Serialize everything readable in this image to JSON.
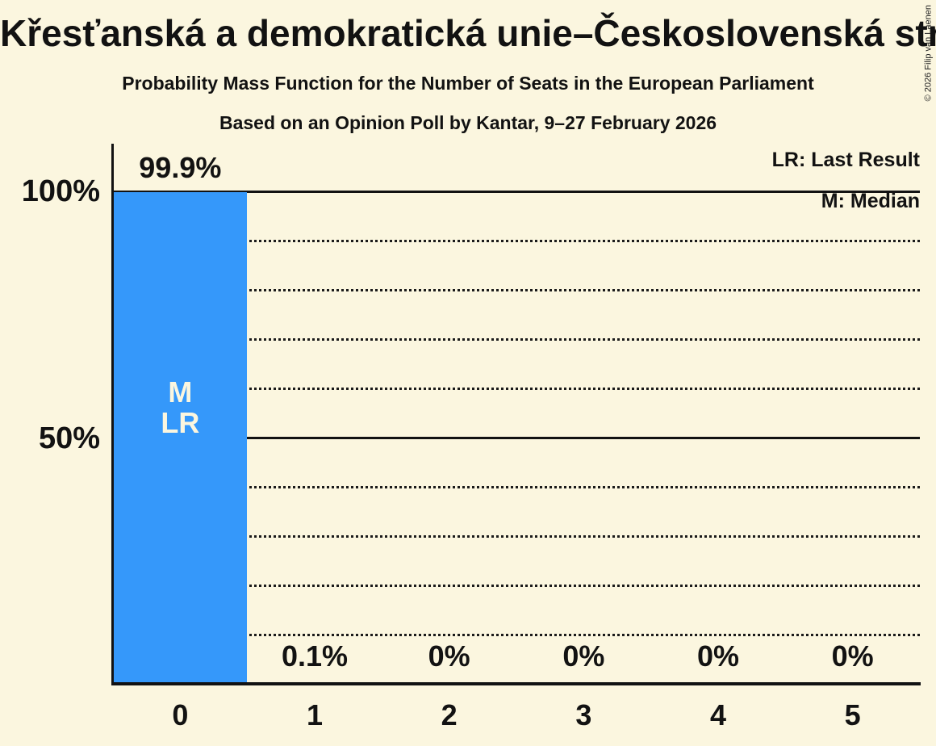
{
  "title": "Křesťanská a demokratická unie–Československá strana lidová",
  "subtitle": "Probability Mass Function for the Number of Seats in the European Parliament",
  "poll_source": "Based on an Opinion Poll by Kantar, 9–27 February 2026",
  "copyright": "© 2026 Filip van Laenen",
  "legend": {
    "last_result": "LR: Last Result",
    "median": "M: Median"
  },
  "chart_data": {
    "type": "bar",
    "title": "Křesťanská a demokratická unie–Československá strana lidová",
    "categories": [
      "0",
      "1",
      "2",
      "3",
      "4",
      "5"
    ],
    "values": [
      99.9,
      0.1,
      0,
      0,
      0,
      0
    ],
    "value_labels": [
      "99.9%",
      "0.1%",
      "0%",
      "0%",
      "0%",
      "0%"
    ],
    "bar_annotations": {
      "0": [
        "M",
        "LR"
      ]
    },
    "median_seats": 0,
    "last_result_seats": 0,
    "ylim": [
      0,
      100
    ],
    "y_ticks": [
      {
        "pct": 100,
        "label": "100%"
      },
      {
        "pct": 50,
        "label": "50%"
      }
    ],
    "gridlines_pct": [
      10,
      20,
      30,
      40,
      50,
      60,
      70,
      80,
      90,
      100
    ],
    "solid_lines_pct": [
      50,
      99.9
    ],
    "grid_style": "dotted-horizontal",
    "legend_position": "top-right",
    "colors": {
      "bar": "#3598FA",
      "background": "#FBF6DF",
      "text": "#121212",
      "bar_label_text": "#FBF6DF"
    }
  }
}
